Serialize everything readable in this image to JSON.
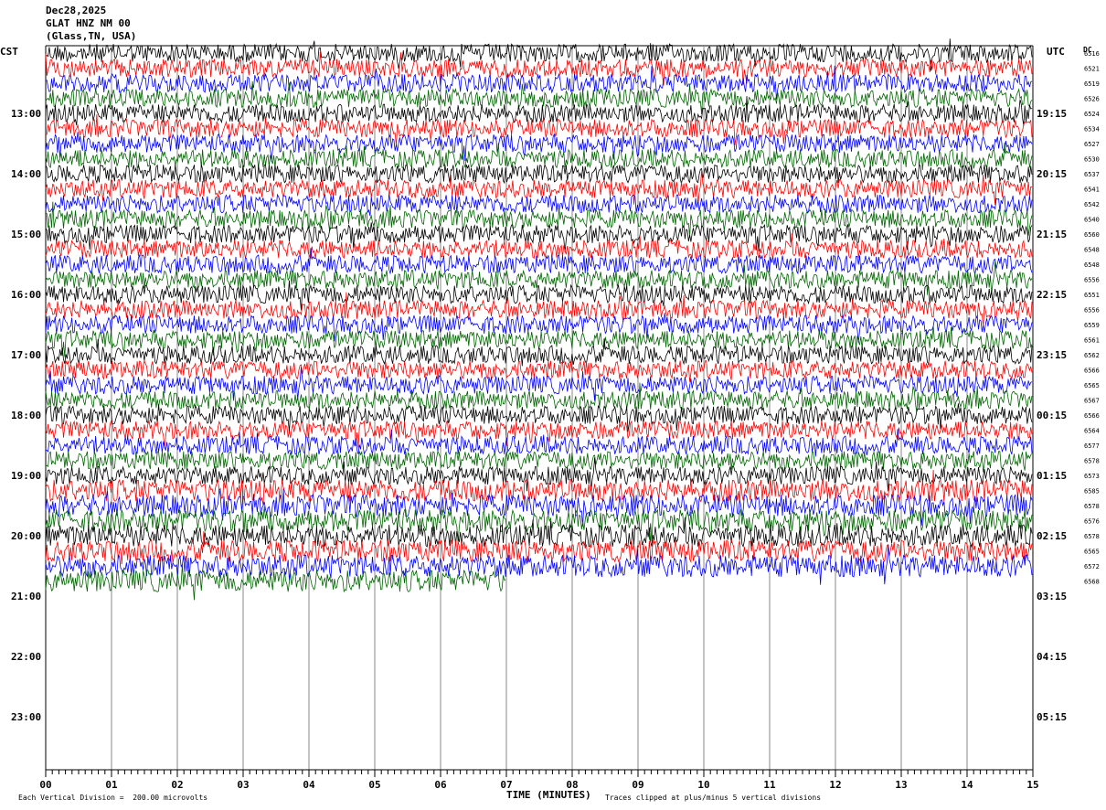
{
  "header": {
    "date": "Dec28,2025",
    "station": "GLAT HNZ NM 00",
    "network": "(Glass,TN, USA)"
  },
  "chart_data": {
    "type": "helicorder",
    "left_timezone": "CST",
    "right_timezone": "UTC",
    "dc_label": "DC",
    "left_hour_labels": [
      "13:00",
      "14:00",
      "15:00",
      "16:00",
      "17:00",
      "18:00",
      "19:00",
      "20:00",
      "21:00",
      "22:00",
      "23:00"
    ],
    "right_hour_labels": [
      "19:15",
      "20:15",
      "21:15",
      "22:15",
      "23:15",
      "00:15",
      "01:15",
      "02:15",
      "03:15",
      "04:15",
      "05:15"
    ],
    "x_tick_labels": [
      "00",
      "01",
      "02",
      "03",
      "04",
      "05",
      "06",
      "07",
      "08",
      "09",
      "10",
      "11",
      "12",
      "13",
      "14",
      "15"
    ],
    "xlabel": "TIME (MINUTES)",
    "xlim": [
      0,
      15
    ],
    "trace_colors": [
      "#000000",
      "#ff0000",
      "#0000ff",
      "#006400"
    ],
    "dc_offsets": [
      6516,
      6521,
      6519,
      6526,
      6524,
      6534,
      6527,
      6530,
      6537,
      6541,
      6542,
      6540,
      6560,
      6548,
      6548,
      6556,
      6551,
      6556,
      6559,
      6561,
      6562,
      6566,
      6565,
      6567,
      6566,
      6564,
      6577,
      6578,
      6573,
      6585,
      6578,
      6576,
      6578,
      6565,
      6572,
      6568
    ],
    "last_trace_end_minutes": 7.0,
    "amplitude_scale": "Each Vertical Division =  200.00 microvolts",
    "clip_note": "Traces clipped at plus/minus 5 vertical divisions"
  }
}
